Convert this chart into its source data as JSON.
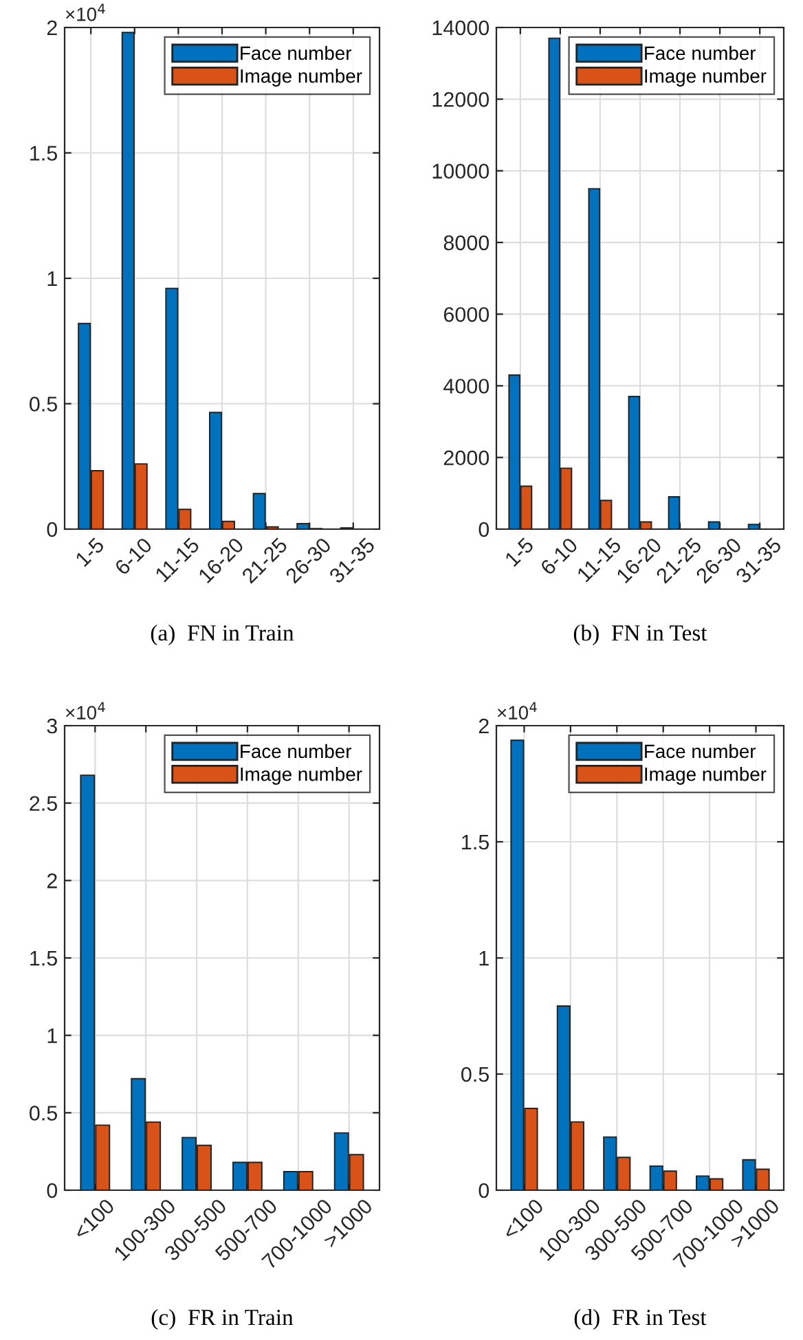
{
  "chart_data": [
    {
      "type": "bar",
      "title": "(a)  FN in Train",
      "categories": [
        "1-5",
        "6-10",
        "11-15",
        "16-20",
        "21-25",
        "26-30",
        "31-35"
      ],
      "series": [
        {
          "name": "Face number",
          "color": "#0072bd",
          "values": [
            0.82,
            1.98,
            0.96,
            0.465,
            0.142,
            0.022,
            0.005
          ]
        },
        {
          "name": "Image number",
          "color": "#d95319",
          "values": [
            0.233,
            0.26,
            0.079,
            0.031,
            0.009,
            0.002,
            null
          ]
        }
      ],
      "ylim": [
        0,
        2
      ],
      "yticks": [
        0,
        0.5,
        1,
        1.5,
        2
      ],
      "annotations": [
        "×10$^{4}$"
      ],
      "grid": true,
      "legend": "top right"
    },
    {
      "type": "bar",
      "title": "(b)  FN in Test",
      "categories": [
        "1-5",
        "6-10",
        "11-15",
        "16-20",
        "21-25",
        "26-30",
        "31-35"
      ],
      "series": [
        {
          "name": "Face number",
          "color": "#0072bd",
          "values": [
            4300,
            13700,
            9500,
            3700,
            900,
            200,
            130
          ]
        },
        {
          "name": "Image number",
          "color": "#d95319",
          "values": [
            1200,
            1700,
            800,
            200,
            null,
            null,
            null
          ]
        }
      ],
      "ylim": [
        0,
        14000
      ],
      "yticks": [
        0,
        2000,
        4000,
        6000,
        8000,
        10000,
        12000,
        14000
      ],
      "grid": true,
      "legend": "top right"
    },
    {
      "type": "bar",
      "title": "(c)  FR in Train",
      "categories": [
        "<100",
        "100-300",
        "300-500",
        "500-700",
        "700-1000",
        ">1000"
      ],
      "series": [
        {
          "name": "Face number",
          "color": "#0072bd",
          "values": [
            2.68,
            0.72,
            0.34,
            0.18,
            0.12,
            0.37
          ]
        },
        {
          "name": "Image number",
          "color": "#d95319",
          "values": [
            0.42,
            0.44,
            0.29,
            0.18,
            0.12,
            0.23
          ]
        }
      ],
      "ylim": [
        0,
        3
      ],
      "yticks": [
        0,
        0.5,
        1,
        1.5,
        2,
        2.5,
        3
      ],
      "annotations": [
        "×10$^{4}$"
      ],
      "grid": true,
      "legend": "top right"
    },
    {
      "type": "bar",
      "title": "(d)  FR in Test",
      "categories": [
        "<100",
        "100-300",
        "300-500",
        "500-700",
        "700-1000",
        ">1000"
      ],
      "series": [
        {
          "name": "Face number",
          "color": "#0072bd",
          "values": [
            1.937,
            0.793,
            0.229,
            0.104,
            0.061,
            0.131
          ]
        },
        {
          "name": "Image number",
          "color": "#d95319",
          "values": [
            0.352,
            0.294,
            0.141,
            0.082,
            0.049,
            0.09
          ]
        }
      ],
      "ylim": [
        0,
        2
      ],
      "yticks": [
        0,
        0.5,
        1,
        1.5,
        2
      ],
      "annotations": [
        "×10$^{4}$"
      ],
      "grid": true,
      "legend": "top right"
    }
  ]
}
